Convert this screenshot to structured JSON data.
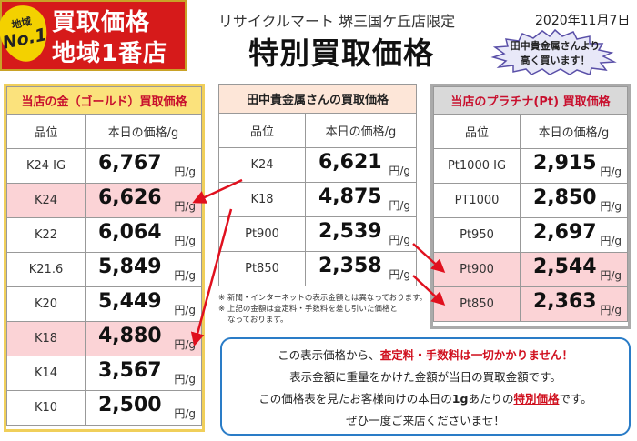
{
  "banner": {
    "badge_top": "地域",
    "badge_main": "No.1",
    "line1": "買取価格",
    "line2": "地域1番店"
  },
  "header": {
    "store": "リサイクルマート 堺三国ケ丘店限定",
    "title": "特別買取価格",
    "date": "2020年11月7日"
  },
  "seal": {
    "line1": "田中貴金属さんより",
    "line2": "高く買います！"
  },
  "unit": "円/g",
  "gold": {
    "title": "当店の金（ゴールド）買取価格",
    "col_grade": "品位",
    "col_price": "本日の価格/g",
    "rows": [
      {
        "grade": "K24 IG",
        "price": "6,767",
        "highlight": false
      },
      {
        "grade": "K24",
        "price": "6,626",
        "highlight": true
      },
      {
        "grade": "K22",
        "price": "6,064",
        "highlight": false
      },
      {
        "grade": "K21.6",
        "price": "5,849",
        "highlight": false
      },
      {
        "grade": "K20",
        "price": "5,449",
        "highlight": false
      },
      {
        "grade": "K18",
        "price": "4,880",
        "highlight": true
      },
      {
        "grade": "K14",
        "price": "3,567",
        "highlight": false
      },
      {
        "grade": "K10",
        "price": "2,500",
        "highlight": false
      }
    ]
  },
  "tanaka": {
    "title": "田中貴金属さんの買取価格",
    "col_grade": "品位",
    "col_price": "本日の価格/g",
    "rows": [
      {
        "grade": "K24",
        "price": "6,621"
      },
      {
        "grade": "K18",
        "price": "4,875"
      },
      {
        "grade": "Pt900",
        "price": "2,539"
      },
      {
        "grade": "Pt850",
        "price": "2,358"
      }
    ]
  },
  "platinum": {
    "title": "当店のプラチナ(Pt) 買取価格",
    "col_grade": "品位",
    "col_price": "本日の価格/g",
    "rows": [
      {
        "grade": "Pt1000 IG",
        "price": "2,915",
        "highlight": false
      },
      {
        "grade": "PT1000",
        "price": "2,850",
        "highlight": false
      },
      {
        "grade": "Pt950",
        "price": "2,697",
        "highlight": false
      },
      {
        "grade": "Pt900",
        "price": "2,544",
        "highlight": true
      },
      {
        "grade": "Pt850",
        "price": "2,363",
        "highlight": true
      }
    ]
  },
  "notes": {
    "line1": "※ 新聞・インターネットの表示金額とは異なっております。",
    "line2": "※ 上記の金額は査定料・手数料を差し引いた価格と",
    "line3": "なっております。"
  },
  "info": {
    "l1_pre": "この表示価格から、",
    "l1_red": "査定料・手数料は一切かかりません！",
    "l2": "表示金額に重量をかけた金額が当日の買取金額です。",
    "l3_pre": "この価格表を見たお客様向けの本日の",
    "l3_bold": "1g",
    "l3_mid": "あたりの",
    "l3_red": "特別価格",
    "l3_post": "です。",
    "l4": "ぜひ一度ご来店くださいませ！"
  },
  "colors": {
    "banner_red": "#d61a1a",
    "gold_header": "#fbe27c",
    "highlight_pink": "#fbd3d6",
    "arrow_red": "#e0101e",
    "info_border": "#2a7cc7"
  }
}
